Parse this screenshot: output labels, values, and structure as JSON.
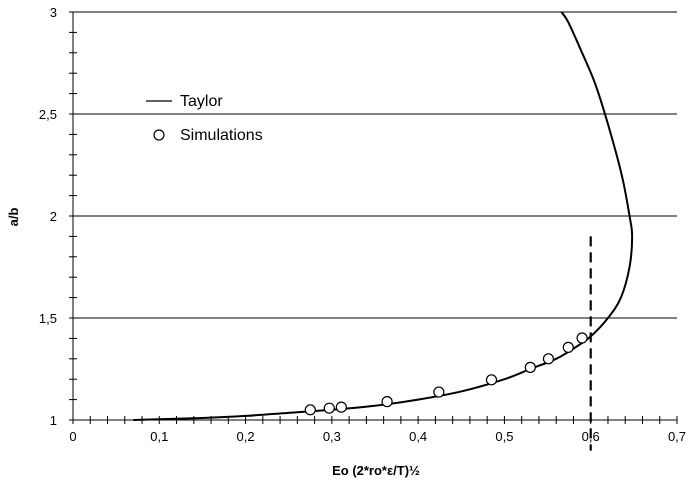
{
  "chart_data": {
    "type": "scatter",
    "xlabel": "Eo (2*ro*ε/T)½",
    "ylabel": "a/b",
    "xlim": [
      0,
      0.7
    ],
    "ylim": [
      1,
      3
    ],
    "x_ticks": [
      "0",
      "0,1",
      "0,2",
      "0,3",
      "0,4",
      "0,5",
      "0,6",
      "0,7"
    ],
    "x_tick_values": [
      0,
      0.1,
      0.2,
      0.3,
      0.4,
      0.5,
      0.6,
      0.7
    ],
    "y_ticks": [
      "1",
      "1,5",
      "2",
      "2,5",
      "3"
    ],
    "y_tick_values": [
      1,
      1.5,
      2,
      2.5,
      3
    ],
    "grid": "horizontal",
    "legend_position": "upper-left",
    "series": [
      {
        "name": "Taylor",
        "kind": "line",
        "color": "#000000",
        "points": [
          [
            0.07,
            1.0
          ],
          [
            0.15,
            1.01
          ],
          [
            0.2,
            1.02
          ],
          [
            0.25,
            1.035
          ],
          [
            0.3,
            1.05
          ],
          [
            0.35,
            1.07
          ],
          [
            0.4,
            1.1
          ],
          [
            0.45,
            1.14
          ],
          [
            0.5,
            1.2
          ],
          [
            0.53,
            1.25
          ],
          [
            0.56,
            1.3
          ],
          [
            0.58,
            1.35
          ],
          [
            0.6,
            1.41
          ],
          [
            0.62,
            1.5
          ],
          [
            0.635,
            1.6
          ],
          [
            0.645,
            1.75
          ],
          [
            0.648,
            1.9
          ],
          [
            0.645,
            2.0
          ],
          [
            0.636,
            2.2
          ],
          [
            0.62,
            2.45
          ],
          [
            0.605,
            2.65
          ],
          [
            0.59,
            2.8
          ],
          [
            0.574,
            2.95
          ],
          [
            0.566,
            3.0
          ]
        ]
      },
      {
        "name": "Simulations",
        "kind": "scatter",
        "color": "#000000",
        "points": [
          [
            0.275,
            1.05
          ],
          [
            0.297,
            1.058
          ],
          [
            0.311,
            1.063
          ],
          [
            0.364,
            1.09
          ],
          [
            0.424,
            1.137
          ],
          [
            0.485,
            1.197
          ],
          [
            0.53,
            1.258
          ],
          [
            0.551,
            1.3
          ],
          [
            0.574,
            1.356
          ],
          [
            0.59,
            1.402
          ]
        ]
      },
      {
        "name": "",
        "kind": "dashed-marker",
        "color": "#000000",
        "x": 0.6,
        "y_range": [
          0.85,
          1.9
        ]
      }
    ]
  }
}
